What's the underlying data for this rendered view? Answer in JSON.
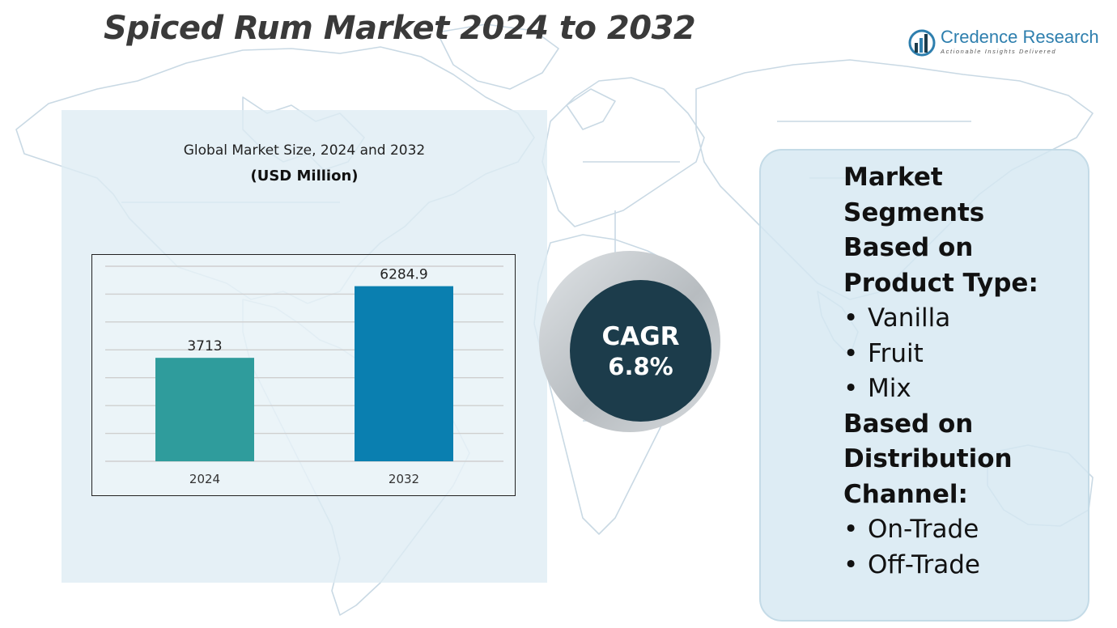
{
  "header": {
    "title": "Spiced Rum Market 2024 to 2032"
  },
  "logo": {
    "name": "Credence Research",
    "tagline": "Actionable Insights Delivered",
    "icon": "credence-bars-icon",
    "color": "#2e7fae"
  },
  "chart_panel": {
    "title": "Global Market Size, 2024 and 2032",
    "unit": "(USD Million)"
  },
  "chart_data": {
    "type": "bar",
    "categories": [
      "2024",
      "2032"
    ],
    "values": [
      3713,
      6284.9
    ],
    "value_labels": [
      "3713",
      "6284.9"
    ],
    "colors": [
      "#2f9c9c",
      "#0a7fb0"
    ],
    "title": "Global Market Size, 2024 and 2032",
    "ylabel": "(USD Million)",
    "xlabel": "",
    "ylim": [
      0,
      7000
    ],
    "grid": true,
    "legend": "none"
  },
  "cagr": {
    "label": "CAGR",
    "value": "6.8%",
    "circle_color": "#1c3c4b"
  },
  "segments": {
    "heading_lines": [
      "Market",
      "Segments",
      "Based on",
      "Product Type:"
    ],
    "product_types": [
      "Vanilla",
      "Fruit",
      "Mix"
    ],
    "distribution_heading_lines": [
      "Based on",
      "Distribution",
      "Channel:"
    ],
    "distribution_channels": [
      "On-Trade",
      "Off-Trade"
    ],
    "bullet": "•"
  }
}
